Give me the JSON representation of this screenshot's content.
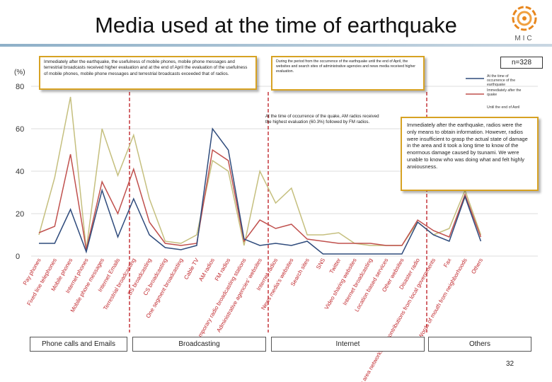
{
  "title": "Media used at the time of earthquake",
  "logo_text": "MIC",
  "sample_size": "n=328",
  "y_unit": "(%)",
  "page_number": "32",
  "notes": {
    "mobile": "Immediately after the earthquake, the usefulness of mobile phones, mobile phone messages and terrestrial broadcasts received higher evaluation and at the end of April the evaluation of the usefulness of mobile phones, mobile phone messages and terrestrial broadcasts exceeded that of radios.",
    "period": "During the period from the occurrence of the earthquake until the end of April, the websites and search sites of administrative agencies and news media received higher evaluation.",
    "am": "At the time of occurrence of the quake, AM radios received the highest evaluation (60.3%) followed by FM radios.",
    "radio": "Immediately after the earthquake, radios were the only means to obtain information. However, radios were insufficient to grasp the actual state of damage in the area and it took a long time to know of the enormous damage caused by tsunami. We were unable to know who was doing what and felt highly anxiousness."
  },
  "groups": [
    {
      "label": "Phone calls and Emails"
    },
    {
      "label": "Broadcasting"
    },
    {
      "label": "Internet"
    },
    {
      "label": "Others"
    }
  ],
  "chart_data": {
    "type": "line",
    "title": "Media used at the time of earthquake",
    "ylabel": "(%)",
    "ylim": [
      0,
      80
    ],
    "yticks": [
      0,
      20,
      40,
      60,
      80
    ],
    "categories": [
      "Pay phones",
      "Fixed line telephones",
      "Mobile phones",
      "Internet phones",
      "Mobile phone messages",
      "Internet Emails",
      "Terrestrial broadcasting",
      "BS broadcasting",
      "CS broadcasting",
      "One segment broadcasting",
      "Cable TV",
      "AM radios",
      "FM radios",
      "Temporary radio broadcasting stations",
      "Administrative agencies' websites",
      "Internet radios",
      "News media's websites",
      "Search sites",
      "SNS",
      "Twitter",
      "Video sharing websites",
      "Internet broadcasting",
      "Location based services",
      "Other websites",
      "Disaster radio",
      "Disaster area networks and contributions from local governments",
      "Fax",
      "Words of mouth from neighborhoods",
      "Others"
    ],
    "series": [
      {
        "name": "At the time of occurrence of the earthquake",
        "color": "#2f4b7c",
        "values": [
          6,
          6,
          22,
          2,
          31,
          9,
          27,
          10,
          4,
          3,
          5,
          60,
          50,
          8,
          5,
          6,
          5,
          7,
          1,
          1,
          1,
          1,
          1,
          1,
          16,
          10,
          7,
          28,
          7
        ]
      },
      {
        "name": "Immediately after the quake",
        "color": "#c0504d",
        "values": [
          11,
          14,
          48,
          3,
          35,
          20,
          41,
          16,
          6,
          5,
          6,
          50,
          45,
          7,
          17,
          13,
          15,
          8,
          7,
          6,
          6,
          6,
          5,
          5,
          17,
          12,
          9,
          29,
          9
        ]
      },
      {
        "name": "Until the end of April",
        "color": "#c5bf7e",
        "values": [
          10,
          37,
          75,
          3,
          60,
          38,
          57,
          27,
          7,
          6,
          10,
          45,
          40,
          5,
          40,
          25,
          32,
          10,
          10,
          11,
          6,
          5,
          5,
          5,
          16,
          10,
          13,
          31,
          10
        ]
      }
    ],
    "legend_position": "top-right"
  }
}
